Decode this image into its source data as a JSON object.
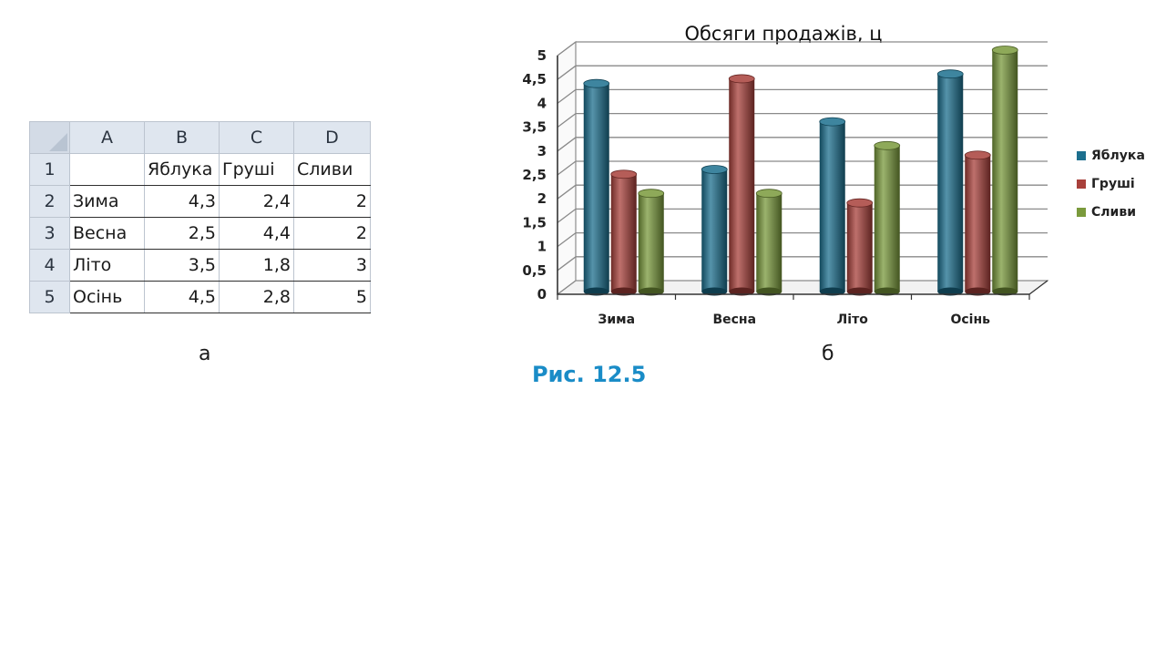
{
  "spreadsheet": {
    "column_headers": [
      "A",
      "B",
      "C",
      "D"
    ],
    "row_numbers": [
      "1",
      "2",
      "3",
      "4",
      "5"
    ],
    "rows": [
      [
        "",
        "Яблука",
        "Груші",
        "Сливи"
      ],
      [
        "Зима",
        "4,3",
        "2,4",
        "2"
      ],
      [
        "Весна",
        "2,5",
        "4,4",
        "2"
      ],
      [
        "Літо",
        "3,5",
        "1,8",
        "3"
      ],
      [
        "Осінь",
        "4,5",
        "2,8",
        "5"
      ]
    ]
  },
  "labels": {
    "sub_a": "а",
    "sub_b": "б",
    "figure": "Рис. 12.5"
  },
  "chart_data": {
    "type": "bar",
    "title": "Обсяги продажів, ц",
    "categories": [
      "Зима",
      "Весна",
      "Літо",
      "Осінь"
    ],
    "series": [
      {
        "name": "Яблука",
        "values": [
          4.3,
          2.5,
          3.5,
          4.5
        ],
        "color": "#1c6f8e"
      },
      {
        "name": "Груші",
        "values": [
          2.4,
          4.4,
          1.8,
          2.8
        ],
        "color": "#a8403b"
      },
      {
        "name": "Сливи",
        "values": [
          2,
          2,
          3,
          5
        ],
        "color": "#7a9a3c"
      }
    ],
    "ylim": [
      0,
      5
    ],
    "yticks": [
      "0",
      "0,5",
      "1",
      "1,5",
      "2",
      "2,5",
      "3",
      "3,5",
      "4",
      "4,5",
      "5"
    ],
    "grid": true,
    "legend_position": "right",
    "style": "3d-cylinder"
  }
}
